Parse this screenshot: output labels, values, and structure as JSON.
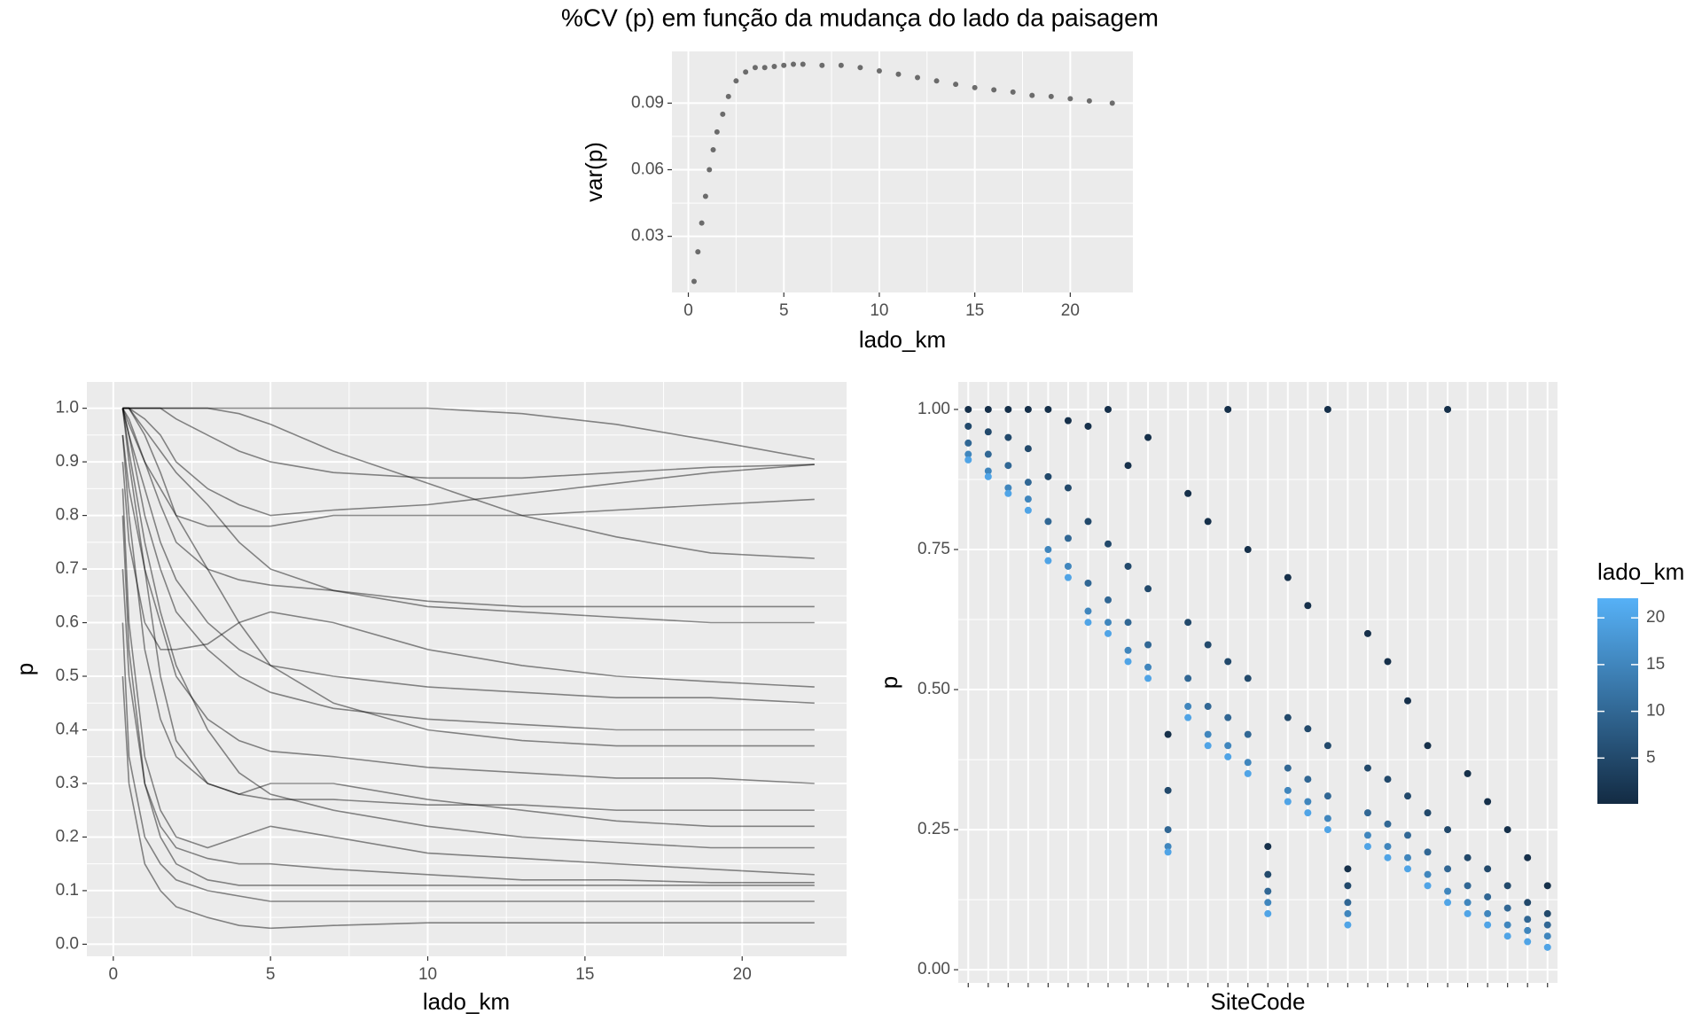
{
  "chart_data": [
    {
      "type": "scatter",
      "title": "%CV (p) em função da mudança do lado da paisagem",
      "x_label": "lado_km",
      "y_label": "var(p)",
      "color": "#555555",
      "grid": true,
      "x": [
        0.3,
        0.5,
        0.7,
        0.9,
        1.1,
        1.3,
        1.5,
        1.8,
        2.1,
        2.5,
        3,
        3.5,
        4,
        4.5,
        5,
        5.5,
        6,
        7,
        8,
        9,
        10,
        11,
        12,
        13,
        14,
        15,
        16,
        17,
        18,
        19,
        20,
        21,
        22.2
      ],
      "values": [
        0.0097,
        0.023,
        0.036,
        0.048,
        0.06,
        0.069,
        0.077,
        0.085,
        0.093,
        0.1,
        0.104,
        0.106,
        0.106,
        0.1065,
        0.107,
        0.1075,
        0.1075,
        0.107,
        0.107,
        0.106,
        0.1045,
        0.103,
        0.1015,
        0.1,
        0.0985,
        0.097,
        0.096,
        0.095,
        0.0935,
        0.093,
        0.092,
        0.091,
        0.09
      ],
      "xlim": [
        -0.86,
        23.28
      ],
      "xticks": [
        0,
        5,
        10,
        15,
        20
      ],
      "ylim": [
        0.0047,
        0.1133
      ],
      "yticks": [
        0.03,
        0.06,
        0.09
      ]
    },
    {
      "type": "line",
      "x_label": "lado_km",
      "y_label": "p",
      "color": "#000000",
      "grid": true,
      "x": [
        0.3,
        0.5,
        1,
        1.5,
        2,
        3,
        4,
        5,
        7,
        10,
        13,
        16,
        19,
        22.3
      ],
      "series": [
        {
          "values": [
            1,
            1,
            1,
            1,
            1,
            1,
            1,
            1,
            1,
            1,
            0.99,
            0.97,
            0.94,
            0.905
          ]
        },
        {
          "values": [
            1,
            1,
            1,
            1,
            0.98,
            0.95,
            0.92,
            0.9,
            0.88,
            0.87,
            0.87,
            0.88,
            0.89,
            0.895
          ]
        },
        {
          "values": [
            1,
            1,
            0.98,
            0.95,
            0.9,
            0.85,
            0.82,
            0.8,
            0.81,
            0.82,
            0.84,
            0.86,
            0.88,
            0.895
          ]
        },
        {
          "values": [
            1,
            1,
            1,
            1,
            1,
            1,
            0.99,
            0.97,
            0.92,
            0.86,
            0.8,
            0.76,
            0.73,
            0.72
          ]
        },
        {
          "values": [
            1,
            0.98,
            0.9,
            0.82,
            0.75,
            0.7,
            0.68,
            0.67,
            0.66,
            0.63,
            0.62,
            0.61,
            0.6,
            0.6
          ]
        },
        {
          "values": [
            0.9,
            0.75,
            0.6,
            0.55,
            0.55,
            0.56,
            0.6,
            0.62,
            0.6,
            0.55,
            0.52,
            0.5,
            0.49,
            0.48
          ]
        },
        {
          "values": [
            1,
            0.95,
            0.8,
            0.7,
            0.62,
            0.55,
            0.5,
            0.47,
            0.44,
            0.42,
            0.41,
            0.4,
            0.4,
            0.4
          ]
        },
        {
          "values": [
            0.7,
            0.5,
            0.3,
            0.22,
            0.18,
            0.16,
            0.15,
            0.15,
            0.14,
            0.13,
            0.12,
            0.12,
            0.115,
            0.115
          ]
        },
        {
          "values": [
            0.6,
            0.35,
            0.2,
            0.15,
            0.12,
            0.1,
            0.09,
            0.08,
            0.08,
            0.08,
            0.08,
            0.08,
            0.08,
            0.08
          ]
        },
        {
          "values": [
            0.5,
            0.3,
            0.15,
            0.1,
            0.07,
            0.05,
            0.035,
            0.03,
            0.035,
            0.04,
            0.04,
            0.04,
            0.04,
            0.04
          ]
        },
        {
          "values": [
            1,
            0.9,
            0.7,
            0.5,
            0.38,
            0.3,
            0.28,
            0.3,
            0.3,
            0.27,
            0.25,
            0.23,
            0.22,
            0.22
          ]
        },
        {
          "values": [
            0.95,
            0.85,
            0.7,
            0.6,
            0.5,
            0.42,
            0.38,
            0.36,
            0.35,
            0.33,
            0.32,
            0.31,
            0.31,
            0.3
          ]
        },
        {
          "values": [
            1,
            1,
            0.95,
            0.88,
            0.8,
            0.7,
            0.6,
            0.52,
            0.45,
            0.4,
            0.38,
            0.37,
            0.37,
            0.37
          ]
        },
        {
          "values": [
            0.85,
            0.6,
            0.35,
            0.25,
            0.2,
            0.18,
            0.2,
            0.22,
            0.2,
            0.17,
            0.16,
            0.15,
            0.14,
            0.13
          ]
        },
        {
          "values": [
            1,
            0.95,
            0.85,
            0.75,
            0.68,
            0.6,
            0.55,
            0.52,
            0.5,
            0.48,
            0.47,
            0.46,
            0.46,
            0.45
          ]
        },
        {
          "values": [
            1,
            0.97,
            0.9,
            0.85,
            0.8,
            0.78,
            0.78,
            0.78,
            0.8,
            0.8,
            0.8,
            0.81,
            0.82,
            0.83
          ]
        },
        {
          "values": [
            0.8,
            0.55,
            0.3,
            0.2,
            0.15,
            0.12,
            0.11,
            0.11,
            0.11,
            0.11,
            0.11,
            0.11,
            0.11,
            0.11
          ]
        },
        {
          "values": [
            1,
            0.92,
            0.75,
            0.62,
            0.52,
            0.4,
            0.32,
            0.28,
            0.25,
            0.22,
            0.2,
            0.19,
            0.18,
            0.18
          ]
        },
        {
          "values": [
            0.95,
            0.8,
            0.55,
            0.42,
            0.35,
            0.3,
            0.28,
            0.27,
            0.27,
            0.26,
            0.26,
            0.25,
            0.25,
            0.25
          ]
        },
        {
          "values": [
            1,
            1,
            0.96,
            0.92,
            0.88,
            0.82,
            0.75,
            0.7,
            0.66,
            0.64,
            0.63,
            0.63,
            0.63,
            0.63
          ]
        }
      ],
      "xlim": [
        -0.84,
        23.32
      ],
      "xticks": [
        0,
        5,
        10,
        15,
        20
      ],
      "ylim": [
        -0.0225,
        1.049
      ],
      "yticks": [
        {
          "value": 0,
          "label": "0.0"
        },
        0.1,
        0.2,
        0.3,
        0.4,
        0.5,
        0.6,
        0.7,
        0.8,
        0.9,
        {
          "value": 1,
          "label": "1.0"
        }
      ]
    },
    {
      "type": "strip",
      "x_label": "SiteCode",
      "y_label": "p",
      "grid": true,
      "categories": [
        null,
        null,
        null,
        null,
        null,
        null,
        null,
        null,
        null,
        null,
        null,
        null,
        null,
        null,
        null,
        null,
        null,
        null,
        null,
        null,
        null,
        null,
        null,
        null,
        null,
        null,
        null,
        null,
        null,
        null
      ],
      "series": [
        {
          "color_value": 1,
          "values": [
            1.0,
            1.0,
            1.0,
            1.0,
            1.0,
            0.98,
            0.97,
            1.0,
            0.9,
            0.95,
            0.42,
            0.85,
            0.8,
            1.0,
            0.75,
            0.22,
            0.7,
            0.65,
            1.0,
            0.18,
            0.6,
            0.55,
            0.48,
            0.4,
            1.0,
            0.35,
            0.3,
            0.25,
            0.2,
            0.15
          ]
        },
        {
          "color_value": 5,
          "values": [
            0.97,
            0.96,
            0.95,
            0.93,
            0.88,
            0.86,
            0.8,
            0.76,
            0.72,
            0.68,
            0.32,
            0.62,
            0.58,
            0.55,
            0.52,
            0.17,
            0.45,
            0.43,
            0.4,
            0.15,
            0.36,
            0.34,
            0.31,
            0.28,
            0.25,
            0.2,
            0.18,
            0.15,
            0.12,
            0.1
          ]
        },
        {
          "color_value": 10,
          "values": [
            0.94,
            0.92,
            0.9,
            0.87,
            0.8,
            0.77,
            0.69,
            0.66,
            0.62,
            0.58,
            0.25,
            0.52,
            0.47,
            0.45,
            0.42,
            0.14,
            0.36,
            0.34,
            0.31,
            0.12,
            0.28,
            0.26,
            0.24,
            0.21,
            0.18,
            0.15,
            0.13,
            0.11,
            0.09,
            0.08
          ]
        },
        {
          "color_value": 15,
          "values": [
            0.92,
            0.89,
            0.86,
            0.84,
            0.75,
            0.72,
            0.64,
            0.62,
            0.57,
            0.54,
            0.22,
            0.47,
            0.42,
            0.4,
            0.37,
            0.12,
            0.32,
            0.3,
            0.27,
            0.1,
            0.24,
            0.22,
            0.2,
            0.17,
            0.14,
            0.12,
            0.1,
            0.08,
            0.07,
            0.06
          ]
        },
        {
          "color_value": 20,
          "values": [
            0.91,
            0.88,
            0.85,
            0.82,
            0.73,
            0.7,
            0.62,
            0.6,
            0.55,
            0.52,
            0.21,
            0.45,
            0.4,
            0.38,
            0.35,
            0.1,
            0.3,
            0.28,
            0.25,
            0.08,
            0.22,
            0.2,
            0.18,
            0.15,
            0.12,
            0.1,
            0.08,
            0.06,
            0.05,
            0.04
          ]
        }
      ],
      "ylim": [
        -0.0235,
        1.049
      ],
      "yticks": [
        {
          "value": 0,
          "label": "0.00"
        },
        0.25,
        {
          "value": 0.5,
          "label": "0.50"
        },
        0.75,
        {
          "value": 1,
          "label": "1.00"
        }
      ],
      "color_scale": {
        "title": "lado_km",
        "lim": [
          0.1,
          22.1
        ],
        "ticks": [
          5,
          10,
          15,
          20
        ],
        "low": "#132B43",
        "high": "#56B1F7"
      }
    }
  ]
}
